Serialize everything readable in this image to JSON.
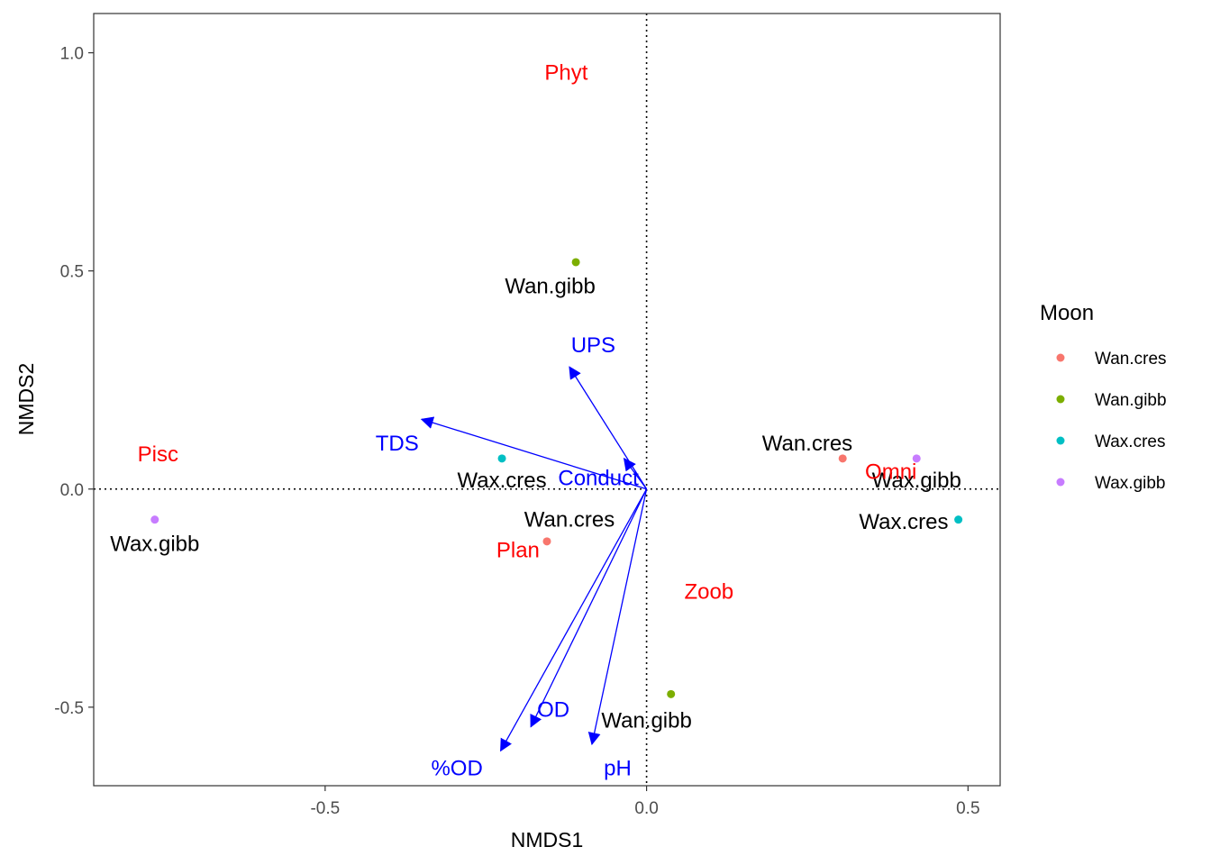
{
  "chart_data": {
    "type": "scatter",
    "xlabel": "NMDS1",
    "ylabel": "NMDS2",
    "xlim": [
      -0.86,
      0.55
    ],
    "ylim": [
      -0.68,
      1.09
    ],
    "x_ticks": [
      -0.5,
      0.0,
      0.5
    ],
    "x_tick_labels": [
      "-0.5",
      "0.0",
      "0.5"
    ],
    "y_ticks": [
      -0.5,
      0.0,
      0.5,
      1.0
    ],
    "y_tick_labels": [
      "-0.5",
      "0.0",
      "0.5",
      "1.0"
    ],
    "grid": false,
    "reference_lines": {
      "x": 0,
      "y": 0,
      "style": "dotted"
    },
    "legend": {
      "title": "Moon",
      "position": "right",
      "entries": [
        {
          "label": "Wan.cres",
          "color": "#F8766D"
        },
        {
          "label": "Wan.gibb",
          "color": "#7CAE00"
        },
        {
          "label": "Wax.cres",
          "color": "#00BFC4"
        },
        {
          "label": "Wax.gibb",
          "color": "#C77CFF"
        }
      ]
    },
    "site_points": [
      {
        "label": "Wan.gibb",
        "moon": "Wan.gibb",
        "x": -0.11,
        "y": 0.52,
        "label_x": -0.15,
        "label_y": 0.465
      },
      {
        "label": "Wax.cres",
        "moon": "Wax.cres",
        "x": -0.225,
        "y": 0.07,
        "label_x": -0.225,
        "label_y": 0.02
      },
      {
        "label": "Wan.cres",
        "moon": "Wan.cres",
        "x": 0.305,
        "y": 0.07,
        "label_x": 0.25,
        "label_y": 0.105
      },
      {
        "label": "Wax.gibb",
        "moon": "Wax.gibb",
        "x": 0.42,
        "y": 0.07,
        "label_x": 0.42,
        "label_y": 0.02
      },
      {
        "label": "Wax.gibb",
        "moon": "Wax.gibb",
        "x": -0.765,
        "y": -0.07,
        "label_x": -0.765,
        "label_y": -0.125
      },
      {
        "label": "Wan.cres",
        "moon": "Wan.cres",
        "x": -0.155,
        "y": -0.12,
        "label_x": -0.12,
        "label_y": -0.07
      },
      {
        "label": "Wax.cres",
        "moon": "Wax.cres",
        "x": 0.485,
        "y": -0.07,
        "label_x": 0.4,
        "label_y": -0.075
      },
      {
        "label": "Wan.gibb",
        "moon": "Wan.gibb",
        "x": 0.038,
        "y": -0.47,
        "label_x": 0.0,
        "label_y": -0.53
      }
    ],
    "species_labels": [
      {
        "label": "Phyt",
        "x": -0.125,
        "y": 0.955,
        "color": "#FF0000"
      },
      {
        "label": "Pisc",
        "x": -0.76,
        "y": 0.08,
        "color": "#FF0000"
      },
      {
        "label": "Omni",
        "x": 0.38,
        "y": 0.04,
        "color": "#FF0000"
      },
      {
        "label": "Plan",
        "x": -0.2,
        "y": -0.14,
        "color": "#FF0000"
      },
      {
        "label": "Zoob",
        "x": 0.097,
        "y": -0.235,
        "color": "#FF0000"
      }
    ],
    "vectors": {
      "color": "#0000FF",
      "origin": [
        0,
        0
      ],
      "items": [
        {
          "label": "UPS",
          "x": -0.12,
          "y": 0.28,
          "label_x": -0.083,
          "label_y": 0.33
        },
        {
          "label": "TDS",
          "x": -0.35,
          "y": 0.16,
          "label_x": -0.388,
          "label_y": 0.105
        },
        {
          "label": "Conduct",
          "x": -0.035,
          "y": 0.07,
          "label_x": -0.075,
          "label_y": 0.025
        },
        {
          "label": "OD",
          "x": -0.18,
          "y": -0.545,
          "label_x": -0.145,
          "label_y": -0.505
        },
        {
          "label": "%OD",
          "x": -0.227,
          "y": -0.6,
          "label_x": -0.295,
          "label_y": -0.64
        },
        {
          "label": "pH",
          "x": -0.085,
          "y": -0.585,
          "label_x": -0.045,
          "label_y": -0.64
        }
      ]
    }
  }
}
